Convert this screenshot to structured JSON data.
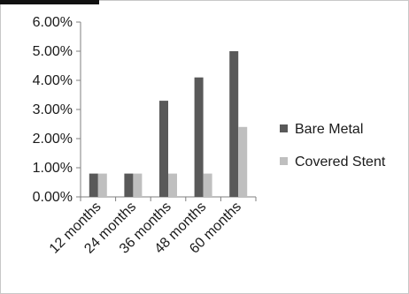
{
  "chart_data": {
    "type": "bar",
    "categories": [
      "12 months",
      "24 months",
      "36 months",
      "48 months",
      "60 months"
    ],
    "series": [
      {
        "name": "Bare Metal",
        "values": [
          0.8,
          0.8,
          3.3,
          4.1,
          5.0
        ],
        "color": "#595959"
      },
      {
        "name": "Covered Stent",
        "values": [
          0.8,
          0.8,
          0.8,
          0.8,
          2.4
        ],
        "color": "#bfbfbf"
      }
    ],
    "yticks": [
      "0.00%",
      "1.00%",
      "2.00%",
      "3.00%",
      "4.00%",
      "5.00%",
      "6.00%"
    ],
    "ylim": [
      0,
      6
    ],
    "grid": false,
    "legend_position": "right"
  }
}
